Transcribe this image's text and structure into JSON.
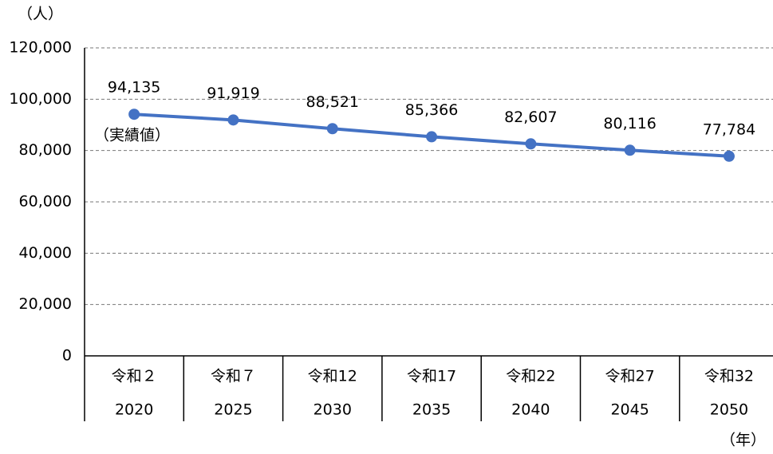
{
  "chart_data": {
    "type": "line",
    "y_unit": "（人）",
    "x_unit": "（年）",
    "annotation": "（実績値）",
    "categories": [
      "令和２",
      "令和７",
      "令和12",
      "令和17",
      "令和22",
      "令和27",
      "令和32"
    ],
    "years": [
      "2020",
      "2025",
      "2030",
      "2035",
      "2040",
      "2045",
      "2050"
    ],
    "series": [
      {
        "color": "#4472c4",
        "values": [
          94135,
          91919,
          88521,
          85366,
          82607,
          80116,
          77784
        ],
        "value_labels": [
          "94,135",
          "91,919",
          "88,521",
          "85,366",
          "82,607",
          "80,116",
          "77,784"
        ]
      }
    ],
    "ylim": [
      0,
      120000
    ],
    "yticks": [
      0,
      {
        "value": 20000,
        "label": "20,000"
      },
      {
        "value": 40000,
        "label": "40,000"
      },
      {
        "value": 60000,
        "label": "60,000"
      },
      {
        "value": 80000,
        "label": "80,000"
      },
      {
        "value": 100000,
        "label": "100,000"
      },
      {
        "value": 120000,
        "label": "120,000"
      }
    ],
    "grid": true
  }
}
